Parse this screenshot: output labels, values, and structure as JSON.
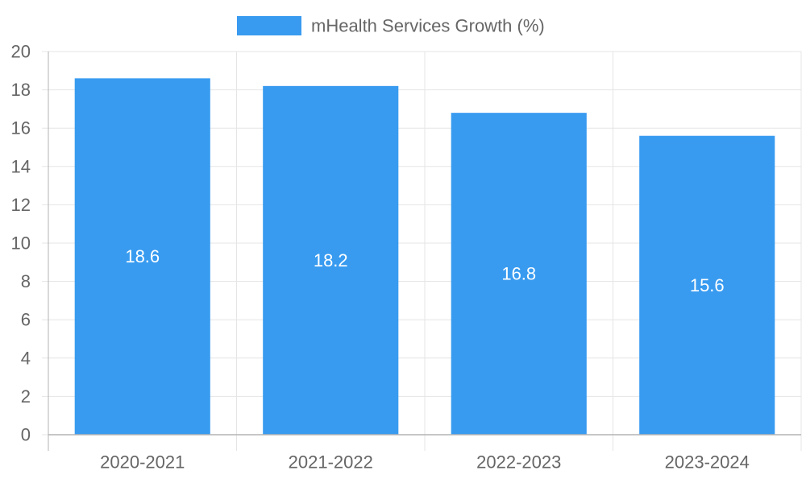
{
  "chart_data": {
    "type": "bar",
    "categories": [
      "2020-2021",
      "2021-2022",
      "2022-2023",
      "2023-2024"
    ],
    "series": [
      {
        "name": "mHealth Services Growth (%)",
        "values": [
          18.6,
          18.2,
          16.8,
          15.6
        ],
        "color": "#389BF0"
      }
    ],
    "value_labels": [
      "18.6",
      "18.2",
      "16.8",
      "15.6"
    ],
    "y_ticks": [
      "0",
      "2",
      "4",
      "6",
      "8",
      "10",
      "12",
      "14",
      "16",
      "18",
      "20"
    ],
    "ylim": [
      0,
      20
    ],
    "y_step": 2,
    "grid": true,
    "legend_position": "top-center",
    "title": "",
    "xlabel": "",
    "ylabel": ""
  },
  "colors": {
    "grid": "#e5e5e5",
    "axis": "#b3b3b3",
    "tick_text": "#666666"
  }
}
